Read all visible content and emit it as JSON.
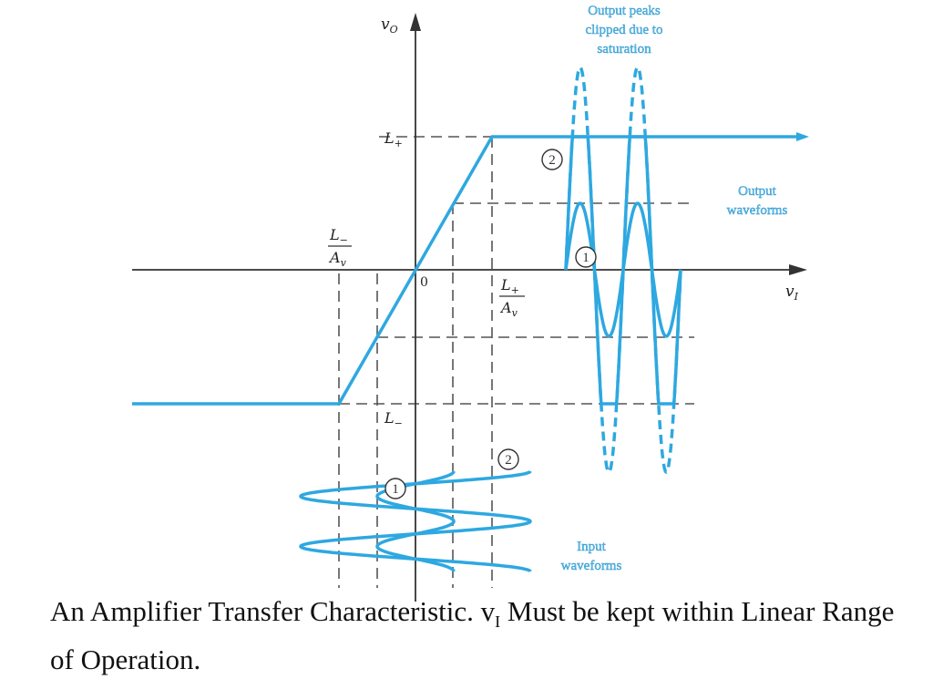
{
  "diagram": {
    "axes": {
      "y_label": "v",
      "y_sub": "O",
      "x_label": "v",
      "x_sub": "I",
      "origin": "0"
    },
    "levels": {
      "l_plus": {
        "base": "L",
        "sub": "+"
      },
      "l_minus": {
        "base": "L",
        "sub": "−"
      },
      "l_minus_over_av": {
        "num_base": "L",
        "num_sub": "−",
        "den_base": "A",
        "den_sub": "v"
      },
      "l_plus_over_av": {
        "num_base": "L",
        "num_sub": "+",
        "den_base": "A",
        "den_sub": "v"
      }
    },
    "annotations": {
      "clipped_line1": "Output peaks",
      "clipped_line2": "clipped due to",
      "clipped_line3": "saturation",
      "output_line1": "Output",
      "output_line2": "waveforms",
      "input_line1": "Input",
      "input_line2": "waveforms"
    },
    "markers": {
      "one": "1",
      "two": "2"
    },
    "colors": {
      "curve": "#2ea8e0",
      "dash": "#555555",
      "axis": "#333333",
      "label_blue": "#5bc0ea"
    }
  },
  "caption": {
    "text_before": "An Amplifier Transfer Characteristic. v",
    "subscript": "I",
    "text_after": " Must be kept within Linear Range of Operation."
  }
}
